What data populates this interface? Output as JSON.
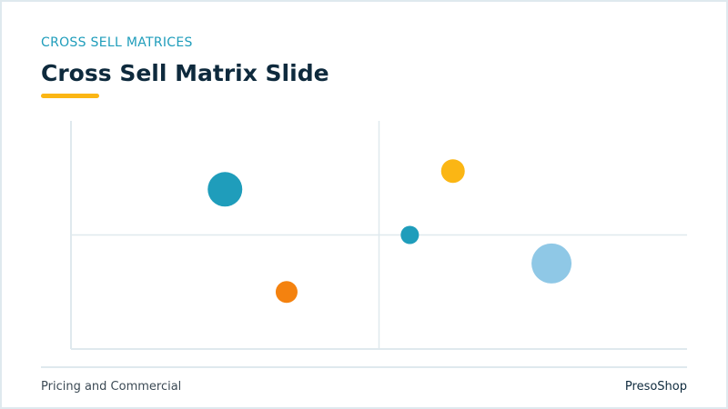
{
  "header": {
    "eyebrow": "CROSS SELL MATRICES",
    "title": "Cross Sell Matrix Slide"
  },
  "footer": {
    "left": "Pricing and Commercial",
    "right": "PresoShop"
  },
  "chart_data": {
    "type": "bubble",
    "x": [
      2.5,
      3.5,
      6.2,
      5.5,
      7.8
    ],
    "values": [
      7.0,
      2.5,
      7.8,
      5.0,
      3.75
    ],
    "sizes": [
      19,
      12,
      13,
      10,
      22
    ],
    "colors": [
      "#1f9dbb",
      "#f4820f",
      "#fbb614",
      "#1f9dbb",
      "#8fc8e6"
    ],
    "xlim": [
      0,
      10
    ],
    "ylim": [
      0,
      10
    ]
  }
}
